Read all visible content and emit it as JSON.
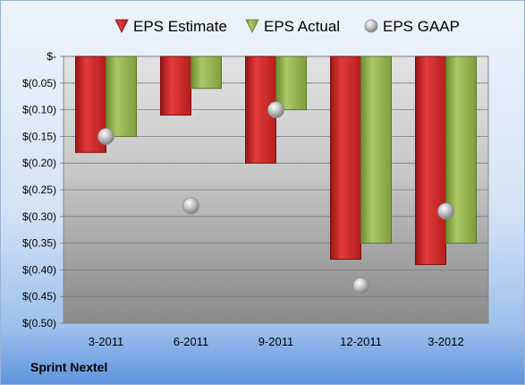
{
  "company": "Sprint Nextel",
  "chart_data": {
    "type": "bar",
    "categories": [
      "3-2011",
      "6-2011",
      "9-2011",
      "12-2011",
      "3-2012"
    ],
    "series": [
      {
        "name": "EPS Estimate",
        "kind": "bar",
        "color": "#d42a2a",
        "values": [
          -0.18,
          -0.11,
          -0.2,
          -0.38,
          -0.39
        ]
      },
      {
        "name": "EPS Actual",
        "kind": "bar",
        "color": "#8fb04a",
        "values": [
          -0.15,
          -0.06,
          -0.1,
          -0.35,
          -0.35
        ]
      },
      {
        "name": "EPS GAAP",
        "kind": "scatter",
        "color": "#b8b8b8",
        "values": [
          -0.15,
          -0.28,
          -0.1,
          -0.43,
          -0.29
        ]
      }
    ],
    "ylim": [
      -0.5,
      0
    ],
    "yticks": [
      0,
      -0.05,
      -0.1,
      -0.15,
      -0.2,
      -0.25,
      -0.3,
      -0.35,
      -0.4,
      -0.45,
      -0.5
    ],
    "ytick_labels": [
      "$-",
      "$(0.05)",
      "$(0.10)",
      "$(0.15)",
      "$(0.20)",
      "$(0.25)",
      "$(0.30)",
      "$(0.35)",
      "$(0.40)",
      "$(0.45)",
      "$(0.50)"
    ],
    "legend": "top",
    "grid": true
  }
}
